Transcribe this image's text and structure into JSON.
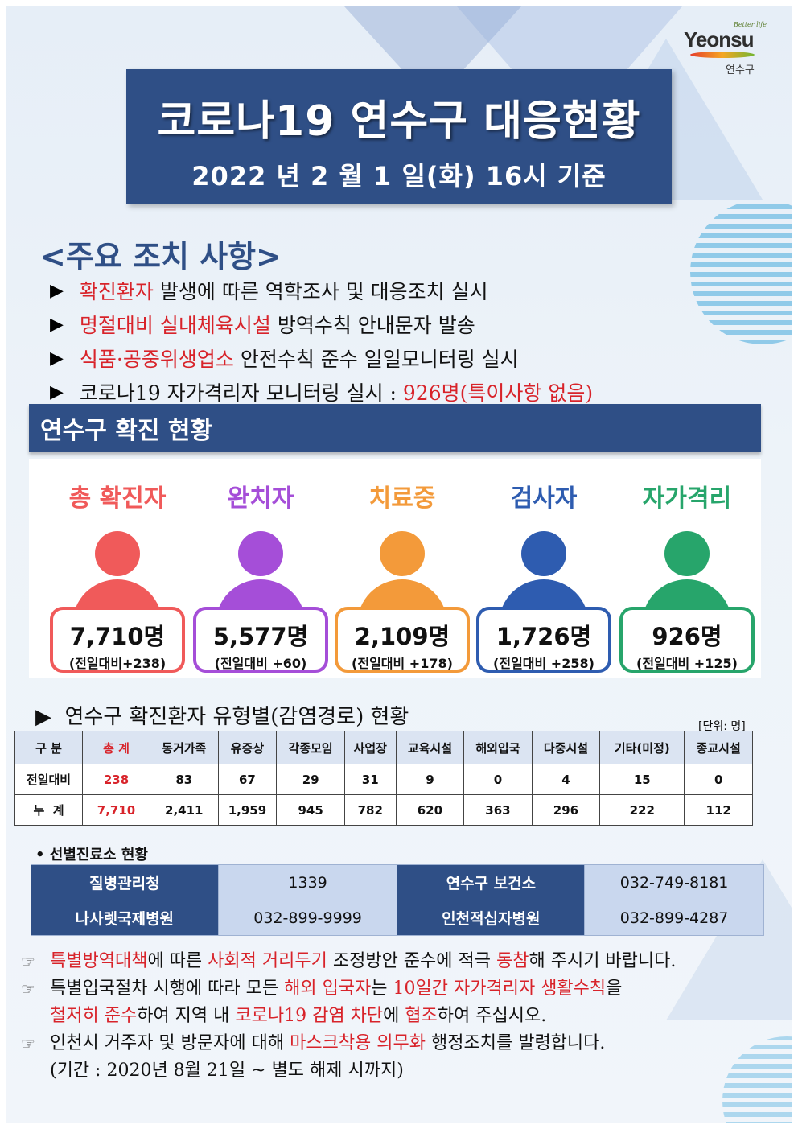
{
  "logo": {
    "small": "Better life",
    "main": "Yeonsu",
    "kr": "연수구"
  },
  "title": {
    "main": "코로나19 연수구 대응현황",
    "date": "2022 년  2 월  1 일(화) 16시 기준"
  },
  "measures": {
    "heading": "<주요 조치 사항>",
    "items": [
      {
        "hl": "확진환자",
        "rest": " 발생에 따른 역학조사 및 대응조치 실시"
      },
      {
        "hl": "명절대비 실내체육시설",
        "rest": " 방역수칙 안내문자 발송"
      },
      {
        "hl": "식품·공중위생업소",
        "rest": " 안전수칙 준수 일일모니터링 실시"
      },
      {
        "pre": "코로나19 자가격리자 모니터링 실시 : ",
        "hl": "926명(특이사항 없음)",
        "rest": ""
      }
    ]
  },
  "status": {
    "heading": "연수구 확진 현황",
    "cards": [
      {
        "label": "총 확진자",
        "count": "7,710명",
        "diff": "(전일대비+238)",
        "color": "#f05a5a"
      },
      {
        "label": "완치자",
        "count": "5,577명",
        "diff": "(전일대비 +60)",
        "color": "#a54ed8"
      },
      {
        "label": "치료중",
        "count": "2,109명",
        "diff": "(전일대비 +178)",
        "color": "#f39a3a"
      },
      {
        "label": "검사자",
        "count": "1,726명",
        "diff": "(전일대비 +258)",
        "color": "#2e5cb0"
      },
      {
        "label": "자가격리",
        "count": "926명",
        "diff": "(전일대비 +125)",
        "color": "#27a56b"
      }
    ]
  },
  "types": {
    "heading": "▶  연수구 확진환자 유형별(감염경로) 현황",
    "unit": "[단위: 명]",
    "headers": [
      "구 분",
      "총 계",
      "동거가족",
      "유증상",
      "각종모임",
      "사업장",
      "교육시설",
      "해외입국",
      "다중시설",
      "기타(미정)",
      "종교시설"
    ],
    "rows": [
      [
        "전일대비",
        "238",
        "83",
        "67",
        "29",
        "31",
        "9",
        "0",
        "4",
        "15",
        "0"
      ],
      [
        "누  계",
        "7,710",
        "2,411",
        "1,959",
        "945",
        "782",
        "620",
        "363",
        "296",
        "222",
        "112"
      ]
    ]
  },
  "clinics": {
    "heading": "• 선별진료소 현황",
    "rows": [
      [
        "질병관리청",
        "1339",
        "연수구 보건소",
        "032-749-8181"
      ],
      [
        "나사렛국제병원",
        "032-899-9999",
        "인천적십자병원",
        "032-899-4287"
      ]
    ]
  },
  "notes": {
    "hand": "☞",
    "n1": {
      "a": "특별방역대책",
      "b": "에 따른 ",
      "c": "사회적 거리두기",
      "d": " 조정방안 준수에 적극 ",
      "e": "동참",
      "f": "해 주시기 바랍니다."
    },
    "n2": {
      "a": "특별입국절차 시행에 따라 모든 ",
      "b": "해외 입국자",
      "c": "는 ",
      "d": "10일간 자가격리자 생활수칙",
      "e": "을"
    },
    "n2b": {
      "a": "철저히 준수",
      "b": "하여 지역 내 ",
      "c": "코로나19 감염 차단",
      "d": "에 ",
      "e": "협조",
      "f": "하여 주십시오."
    },
    "n3": {
      "a": "인천시 거주자 및 방문자에 대해 ",
      "b": "마스크착용 의무화",
      "c": " 행정조치를 발령합니다."
    },
    "n3b": "(기간 : 2020년 8월 21일 ~ 별도 해제 시까지)"
  }
}
